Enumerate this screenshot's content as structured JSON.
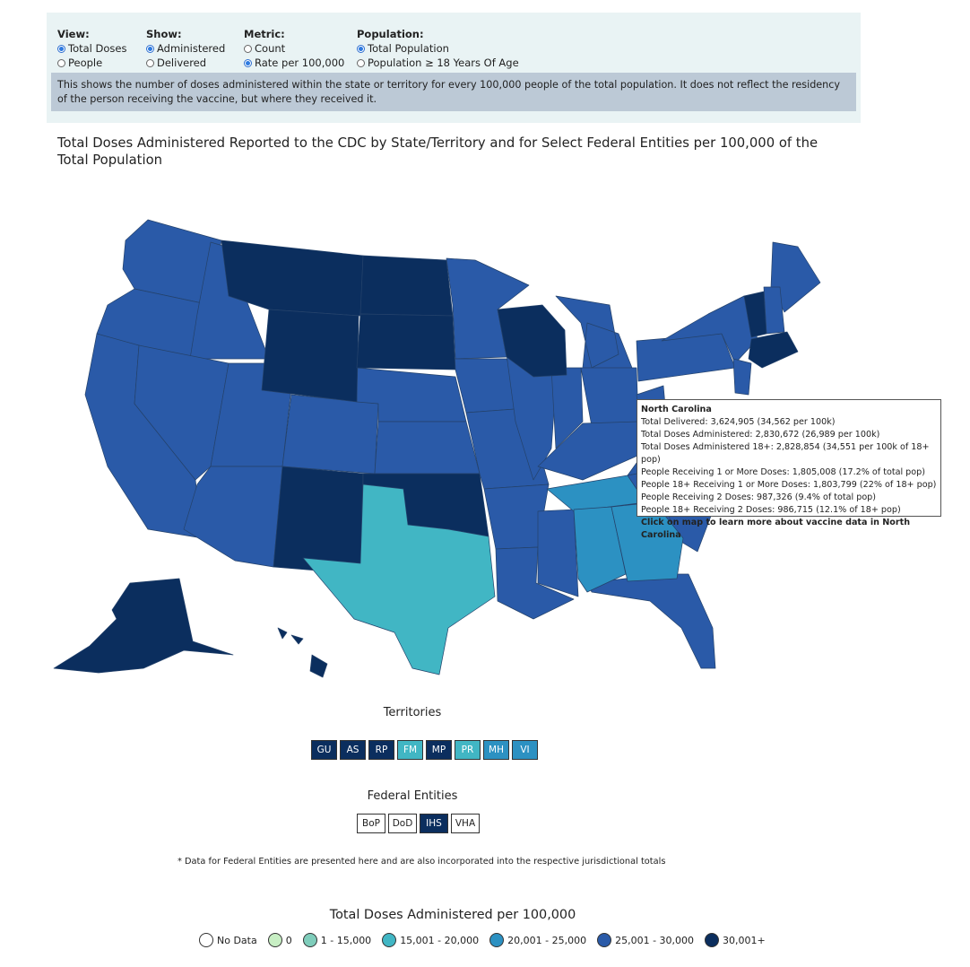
{
  "controls": {
    "view": {
      "label": "View:",
      "options": [
        "Total Doses",
        "People"
      ],
      "selected": 0
    },
    "show": {
      "label": "Show:",
      "options": [
        "Administered",
        "Delivered"
      ],
      "selected": 0
    },
    "metric": {
      "label": "Metric:",
      "options": [
        "Count",
        "Rate per 100,000"
      ],
      "selected": 1
    },
    "population": {
      "label": "Population:",
      "options": [
        "Total Population",
        "Population ≥ 18 Years Of Age"
      ],
      "selected": 0
    },
    "description": "This shows the number of doses administered within the state or territory for every 100,000 people of the total population. It does not reflect the residency of the person receiving the vaccine, but where they received it."
  },
  "title": "Total Doses Administered Reported to the CDC by State/Territory and for Select Federal Entities per 100,000 of the Total Population",
  "colors": {
    "no_data": "#ffffff",
    "zero": "#c8efc4",
    "b1": "#7fcdbb",
    "b2": "#41b6c4",
    "b3": "#2c91c2",
    "b4": "#2a5aa8",
    "b5": "#0b2e5e"
  },
  "tooltip": {
    "state": "North Carolina",
    "lines": [
      "Total Delivered: 3,624,905 (34,562 per 100k)",
      "Total Doses Administered: 2,830,672 (26,989 per 100k)",
      "Total Doses Administered 18+: 2,828,854 (34,551 per 100k of 18+ pop)",
      "People Receiving 1 or More Doses: 1,805,008 (17.2% of total pop)",
      "People 18+ Receiving 1 or More Doses: 1,803,799 (22% of 18+ pop)",
      "People Receiving 2 Doses: 987,326 (9.4% of total pop)",
      "People 18+ Receiving 2 Doses: 986,715 (12.1% of 18+ pop)"
    ],
    "link": "Click on map to learn more about vaccine data in North Carolina"
  },
  "territories": {
    "title": "Territories",
    "items": [
      {
        "code": "GU",
        "bin": "b5"
      },
      {
        "code": "AS",
        "bin": "b5"
      },
      {
        "code": "RP",
        "bin": "b5"
      },
      {
        "code": "FM",
        "bin": "b2"
      },
      {
        "code": "MP",
        "bin": "b5"
      },
      {
        "code": "PR",
        "bin": "b2"
      },
      {
        "code": "MH",
        "bin": "b3"
      },
      {
        "code": "VI",
        "bin": "b3"
      }
    ]
  },
  "federal": {
    "title": "Federal Entities",
    "items": [
      {
        "code": "BoP",
        "bin": "no_data"
      },
      {
        "code": "DoD",
        "bin": "no_data"
      },
      {
        "code": "IHS",
        "bin": "b5"
      },
      {
        "code": "VHA",
        "bin": "no_data"
      }
    ],
    "note": "* Data for Federal Entities are presented here and are also incorporated into the respective jurisdictional totals"
  },
  "legend": {
    "title": "Total Doses Administered per 100,000",
    "items": [
      {
        "label": "No Data",
        "bin": "no_data"
      },
      {
        "label": "0",
        "bin": "zero"
      },
      {
        "label": "1 - 15,000",
        "bin": "b1"
      },
      {
        "label": "15,001 - 20,000",
        "bin": "b2"
      },
      {
        "label": "20,001 - 25,000",
        "bin": "b3"
      },
      {
        "label": "25,001 - 30,000",
        "bin": "b4"
      },
      {
        "label": "30,001+",
        "bin": "b5"
      }
    ]
  }
}
